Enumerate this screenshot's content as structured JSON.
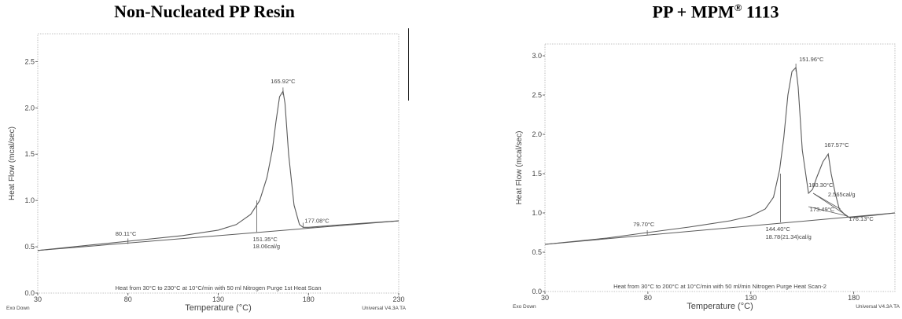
{
  "titles": {
    "left": "Non-Nucleated PP Resin",
    "right_main": "PP + MPM",
    "right_sup": "®",
    "right_suffix": " 1113"
  },
  "colors": {
    "curve": "#5a5a5a",
    "plot_border": "#b0b0b0",
    "text": "#444444"
  },
  "chart_data": [
    {
      "type": "line",
      "title": "Non-Nucleated PP Resin",
      "xlabel": "Temperature (°C)",
      "ylabel": "Heat Flow (mcal/sec)",
      "xlim": [
        30,
        230
      ],
      "ylim": [
        0,
        2.8
      ],
      "xticks": [
        30,
        80,
        130,
        180,
        230
      ],
      "yticks": [
        0.0,
        0.5,
        1.0,
        1.5,
        2.0,
        2.5
      ],
      "ytick_labels": [
        "0.0",
        "0.5",
        "1.0",
        "1.5",
        "2.0",
        "2.5"
      ],
      "series": [
        {
          "x": [
            30,
            60,
            80,
            110,
            130,
            140,
            148,
            153,
            157,
            160,
            162,
            164,
            165.9,
            167,
            169,
            172,
            175,
            177,
            180,
            200,
            230
          ],
          "y": [
            0.46,
            0.52,
            0.56,
            0.62,
            0.68,
            0.74,
            0.85,
            1.0,
            1.25,
            1.55,
            1.85,
            2.12,
            2.18,
            2.05,
            1.5,
            0.95,
            0.74,
            0.71,
            0.71,
            0.74,
            0.78
          ]
        }
      ],
      "baseline": [
        [
          30,
          0.46
        ],
        [
          230,
          0.78
        ]
      ],
      "annotations": [
        {
          "text": "165.92°C",
          "x": 165.9,
          "y": 2.18,
          "anchor": "middle",
          "dy": -10
        },
        {
          "text": "80.11°C",
          "x": 80,
          "y": 0.56,
          "anchor": "start",
          "dx": -16,
          "dy": -7
        },
        {
          "text": "177.08°C",
          "x": 177,
          "y": 0.71,
          "anchor": "start",
          "dx": 2,
          "dy": -6
        },
        {
          "text": "151.35°C",
          "x": 151.35,
          "y": 0.66,
          "anchor": "start",
          "dx": -5,
          "dy": 12
        },
        {
          "text": "18.06cal/g",
          "x": 151.35,
          "y": 0.66,
          "anchor": "start",
          "dx": -5,
          "dy": 21
        }
      ],
      "markers": [
        {
          "x": 151.35,
          "y0": 0.66,
          "y1": 1.0
        },
        {
          "x": 177,
          "y0": 0.71,
          "y1": 0.76
        },
        {
          "x": 80,
          "y0": 0.53,
          "y1": 0.59
        },
        {
          "x": 165.9,
          "y0": 2.14,
          "y1": 2.22
        }
      ],
      "footer": "Heat from 30°C to 230°C at 10°C/min with 50 ml Nitrogen Purge 1st Heat Scan",
      "corner_left": "Exo Down",
      "corner_right": "Universal V4.3A TA"
    },
    {
      "type": "line",
      "title": "PP + MPM® 1113",
      "xlabel": "Temperature (°C)",
      "ylabel": "Heat Flow (mcal/sec)",
      "xlim": [
        30,
        200
      ],
      "ylim": [
        0,
        3.15
      ],
      "xticks": [
        30,
        80,
        130,
        180
      ],
      "yticks": [
        0.0,
        0.5,
        1.0,
        1.5,
        2.0,
        2.5,
        3.0
      ],
      "ytick_labels": [
        "0.0",
        "0.5",
        "1.0",
        "1.5",
        "2.0",
        "2.5",
        "3.0"
      ],
      "series": [
        {
          "x": [
            30,
            60,
            79.7,
            100,
            120,
            130,
            137,
            141,
            144,
            146,
            148,
            150,
            151.9,
            153,
            155,
            158,
            160,
            162,
            165,
            167.6,
            169,
            171,
            173,
            176,
            178,
            190,
            200
          ],
          "y": [
            0.6,
            0.68,
            0.75,
            0.82,
            0.9,
            0.96,
            1.05,
            1.2,
            1.55,
            1.95,
            2.5,
            2.8,
            2.85,
            2.6,
            1.8,
            1.25,
            1.3,
            1.45,
            1.65,
            1.75,
            1.5,
            1.25,
            1.05,
            0.97,
            0.94,
            0.97,
            1.0
          ]
        }
      ],
      "baseline": [
        [
          30,
          0.6
        ],
        [
          200,
          1.0
        ]
      ],
      "extra_lines": [
        [
          [
            160.3,
            1.25
          ],
          [
            177,
            0.96
          ]
        ],
        [
          [
            158,
            1.08
          ],
          [
            177,
            0.96
          ]
        ],
        [
          [
            160.3,
            1.25
          ],
          [
            173.49,
            1.05
          ]
        ]
      ],
      "annotations": [
        {
          "text": "151.96°C",
          "x": 151.9,
          "y": 2.85,
          "anchor": "start",
          "dx": 4,
          "dy": -8
        },
        {
          "text": "79.70°C",
          "x": 79.7,
          "y": 0.75,
          "anchor": "start",
          "dx": -18,
          "dy": -8
        },
        {
          "text": "167.57°C",
          "x": 167.6,
          "y": 1.75,
          "anchor": "start",
          "dx": -5,
          "dy": -9
        },
        {
          "text": "160.30°C",
          "x": 160.3,
          "y": 1.25,
          "anchor": "start",
          "dx": -6,
          "dy": -8
        },
        {
          "text": "2.565cal/g",
          "x": 167.5,
          "y": 1.21,
          "anchor": "start",
          "dx": 0,
          "dy": 0
        },
        {
          "text": "173.49°C",
          "x": 170.6,
          "y": 1.02,
          "anchor": "end",
          "dx": 0,
          "dy": 0
        },
        {
          "text": "176.13°C",
          "x": 176.1,
          "y": 0.96,
          "anchor": "start",
          "dx": 4,
          "dy": 6
        },
        {
          "text": "144.40°C",
          "x": 144.4,
          "y": 0.88,
          "anchor": "start",
          "dx": -19,
          "dy": 11
        },
        {
          "text": "18.78(21.34)cal/g",
          "x": 144.4,
          "y": 0.88,
          "anchor": "start",
          "dx": -19,
          "dy": 21
        }
      ],
      "markers": [
        {
          "x": 144.4,
          "y0": 0.88,
          "y1": 1.5
        },
        {
          "x": 79.7,
          "y0": 0.72,
          "y1": 0.78
        },
        {
          "x": 151.9,
          "y0": 2.8,
          "y1": 2.9
        }
      ],
      "footer": "Heat from 30°C to 200°C at 10°C/min with 50 ml/min Nitrogen Purge Heat Scan-2",
      "corner_left": "Exo Down",
      "corner_right": "Universal V4.3A TA"
    }
  ]
}
